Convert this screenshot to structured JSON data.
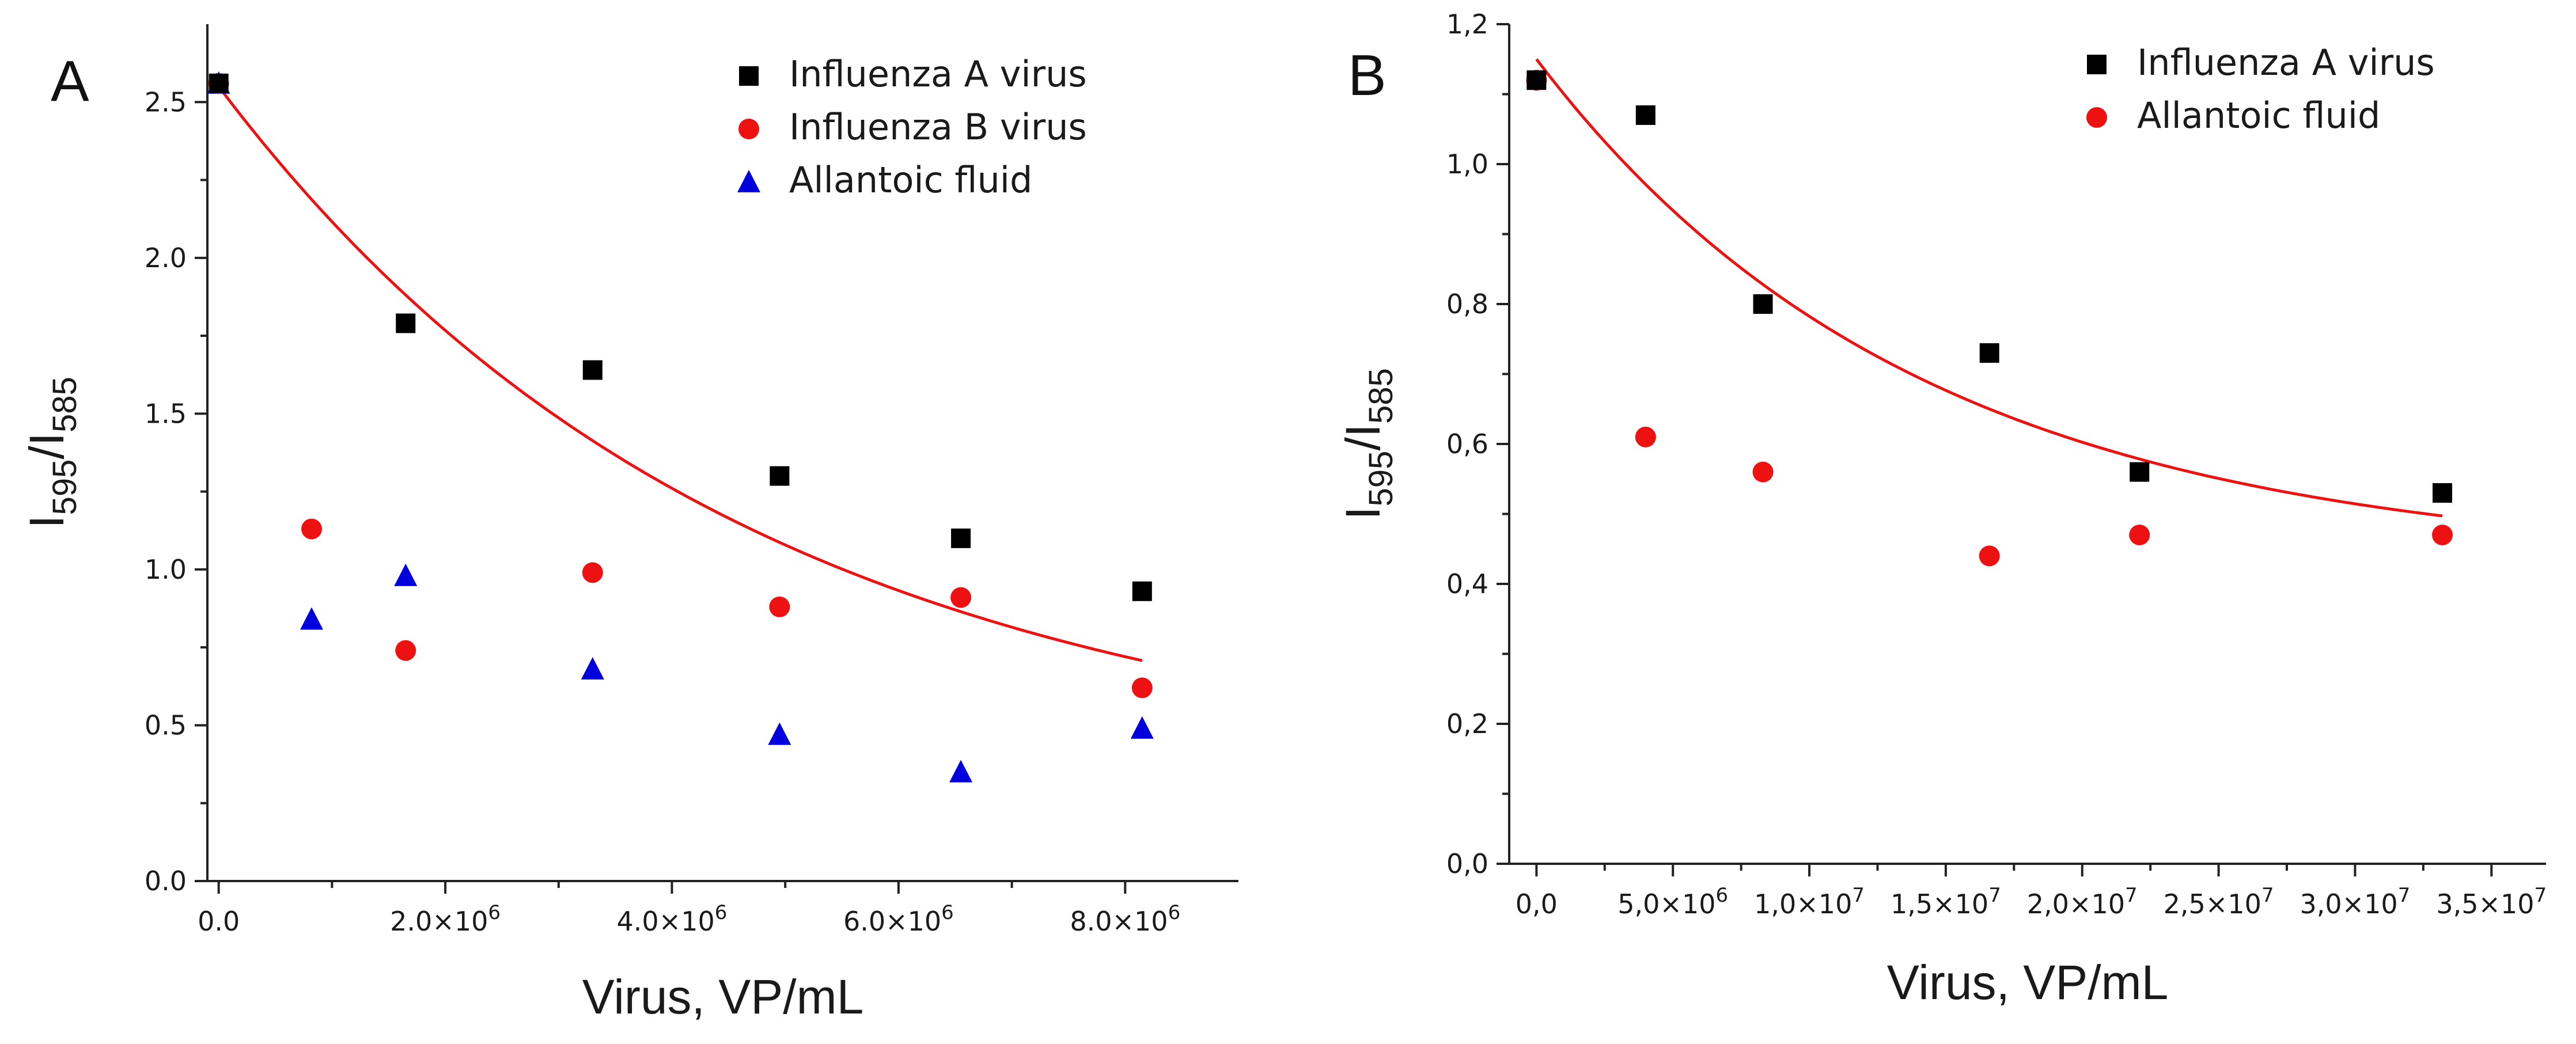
{
  "chart_data": [
    {
      "panel": "A",
      "type": "scatter",
      "xlabel": "Virus, VP/mL",
      "ylabel_main": "I",
      "ylabel_sub1": "595",
      "ylabel_sep": "/I",
      "ylabel_sub2": "585",
      "xlim": [
        -100000,
        9000000
      ],
      "ylim": [
        0,
        2.75
      ],
      "x_ticks": [
        0,
        2000000,
        4000000,
        6000000,
        8000000
      ],
      "x_tick_labels": [
        {
          "base": "0.0",
          "exp": ""
        },
        {
          "base": "2.0×10",
          "exp": "6"
        },
        {
          "base": "4.0×10",
          "exp": "6"
        },
        {
          "base": "6.0×10",
          "exp": "6"
        },
        {
          "base": "8.0×10",
          "exp": "6"
        }
      ],
      "y_ticks": [
        0,
        0.5,
        1.0,
        1.5,
        2.0,
        2.5
      ],
      "y_tick_labels": [
        "0.0",
        "0.5",
        "1.0",
        "1.5",
        "2.0",
        "2.5"
      ],
      "legend_position": "top-right",
      "series": [
        {
          "name": "Influenza A virus",
          "marker": "square",
          "color": "#000000",
          "x": [
            0,
            1650000,
            3300000,
            4950000,
            6550000,
            8150000
          ],
          "y": [
            2.56,
            1.79,
            1.64,
            1.3,
            1.1,
            0.93
          ]
        },
        {
          "name": "Influenza B virus",
          "marker": "circle",
          "color": "#ee1111",
          "x": [
            0,
            820000,
            1650000,
            3300000,
            4950000,
            6550000,
            8150000
          ],
          "y": [
            2.56,
            1.13,
            0.74,
            0.99,
            0.88,
            0.91,
            0.62
          ]
        },
        {
          "name": "Allantoic fluid",
          "marker": "triangle",
          "color": "#0000dd",
          "x": [
            0,
            820000,
            1650000,
            3300000,
            4950000,
            6550000,
            8150000
          ],
          "y": [
            2.56,
            0.84,
            0.98,
            0.68,
            0.47,
            0.35,
            0.49
          ]
        }
      ],
      "fit": {
        "color": "#ee1111",
        "x_start": 0,
        "x_end": 8150000,
        "model": "y = y0 + A*exp(-x/t)",
        "y0": 0.33,
        "A": 2.22,
        "t": 4600000
      }
    },
    {
      "panel": "B",
      "type": "scatter",
      "xlabel": "Virus, VP/mL",
      "ylabel_main": "I",
      "ylabel_sub1": "595",
      "ylabel_sep": "/I",
      "ylabel_sub2": "585",
      "xlim": [
        -1000000,
        37000000
      ],
      "ylim": [
        0,
        1.2
      ],
      "x_ticks": [
        0,
        5000000,
        10000000,
        15000000,
        20000000,
        25000000,
        30000000,
        35000000
      ],
      "x_tick_labels": [
        {
          "base": "0,0",
          "exp": ""
        },
        {
          "base": "5,0×10",
          "exp": "6"
        },
        {
          "base": "1,0×10",
          "exp": "7"
        },
        {
          "base": "1,5×10",
          "exp": "7"
        },
        {
          "base": "2,0×10",
          "exp": "7"
        },
        {
          "base": "2,5×10",
          "exp": "7"
        },
        {
          "base": "3,0×10",
          "exp": "7"
        },
        {
          "base": "3,5×10",
          "exp": "7"
        }
      ],
      "y_ticks": [
        0,
        0.2,
        0.4,
        0.6,
        0.8,
        1.0,
        1.2
      ],
      "y_tick_labels": [
        "0,0",
        "0,2",
        "0,4",
        "0,6",
        "0,8",
        "1,0",
        "1,2"
      ],
      "legend_position": "top-right",
      "series": [
        {
          "name": "Influenza A virus",
          "marker": "square",
          "color": "#000000",
          "x": [
            0,
            4000000,
            8300000,
            16600000,
            22100000,
            33200000
          ],
          "y": [
            1.12,
            1.07,
            0.8,
            0.73,
            0.56,
            0.53
          ]
        },
        {
          "name": "Allantoic fluid",
          "marker": "circle",
          "color": "#ee1111",
          "x": [
            0,
            4000000,
            8300000,
            16600000,
            22100000,
            33200000
          ],
          "y": [
            1.12,
            0.61,
            0.56,
            0.44,
            0.47,
            0.47
          ]
        }
      ],
      "fit": {
        "color": "#ee1111",
        "x_start": 0,
        "x_end": 33200000,
        "model": "y = y0 + A*exp(-x/t)",
        "y0": 0.43,
        "A": 0.72,
        "t": 14000000
      }
    }
  ]
}
